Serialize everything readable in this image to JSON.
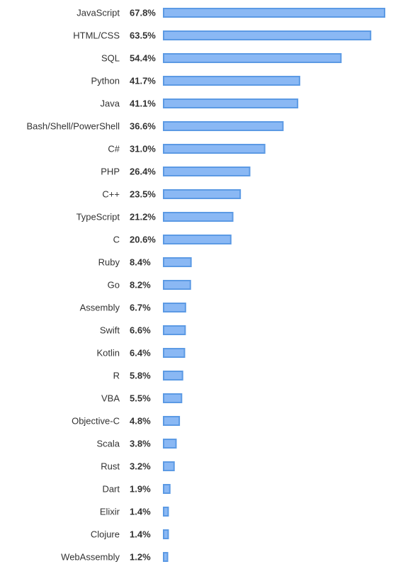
{
  "chart_data": {
    "type": "bar",
    "orientation": "horizontal",
    "title": "",
    "xlabel": "",
    "ylabel": "",
    "grid": false,
    "value_suffix": "%",
    "xlim": [
      0,
      67.8
    ],
    "colors": {
      "bar_fill": "#8ab8f4",
      "bar_stroke": "#5c9ae4"
    },
    "categories": [
      "JavaScript",
      "HTML/CSS",
      "SQL",
      "Python",
      "Java",
      "Bash/Shell/PowerShell",
      "C#",
      "PHP",
      "C++",
      "TypeScript",
      "C",
      "Ruby",
      "Go",
      "Assembly",
      "Swift",
      "Kotlin",
      "R",
      "VBA",
      "Objective-C",
      "Scala",
      "Rust",
      "Dart",
      "Elixir",
      "Clojure",
      "WebAssembly"
    ],
    "values": [
      67.8,
      63.5,
      54.4,
      41.7,
      41.1,
      36.6,
      31.0,
      26.4,
      23.5,
      21.2,
      20.6,
      8.4,
      8.2,
      6.7,
      6.6,
      6.4,
      5.8,
      5.5,
      4.8,
      3.8,
      3.2,
      1.9,
      1.4,
      1.4,
      1.2
    ],
    "value_labels": [
      "67.8%",
      "63.5%",
      "54.4%",
      "41.7%",
      "41.1%",
      "36.6%",
      "31.0%",
      "26.4%",
      "23.5%",
      "21.2%",
      "20.6%",
      "8.4%",
      "8.2%",
      "6.7%",
      "6.6%",
      "6.4%",
      "5.8%",
      "5.5%",
      "4.8%",
      "3.8%",
      "3.2%",
      "1.9%",
      "1.4%",
      "1.4%",
      "1.2%"
    ]
  }
}
